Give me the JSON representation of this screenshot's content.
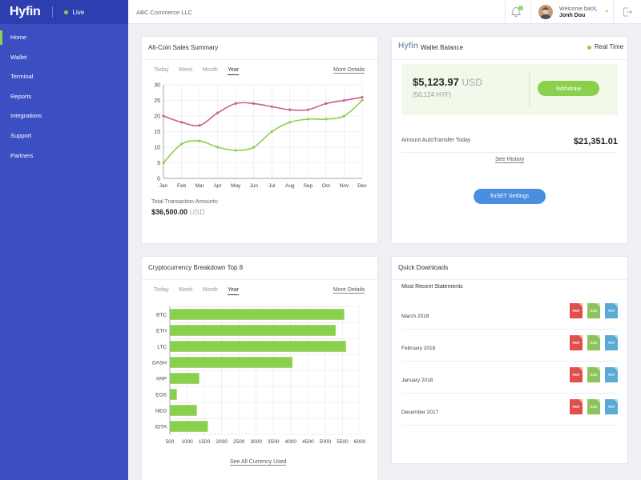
{
  "brand": {
    "logo": "Hyfin",
    "status": "Live"
  },
  "sidebar": {
    "items": [
      {
        "label": "Home"
      },
      {
        "label": "Wallet"
      },
      {
        "label": "Terminal"
      },
      {
        "label": "Reports"
      },
      {
        "label": "Integrations"
      },
      {
        "label": "Support"
      },
      {
        "label": "Partners"
      }
    ],
    "active": "Home"
  },
  "topbar": {
    "company": "ABC Commerce LLC",
    "notification_count": "4",
    "welcome": "Welcome back,",
    "username": "Jonh Dou"
  },
  "colors": {
    "sidebar": "#3c4fc2",
    "accent_green": "#8bd04c",
    "series_pink": "#c8608e",
    "button_blue": "#4a8ee0"
  },
  "sales": {
    "title": "Alt-Coin Sales Summary",
    "tabs": [
      "Today",
      "Week",
      "Month",
      "Year"
    ],
    "active_tab": "Year",
    "more": "More Details",
    "total_label": "Total Transaction Amounts:",
    "total_value": "$36,500.00",
    "total_currency": "USD"
  },
  "wallet": {
    "logo": "Hyfin",
    "title": "Wallet Balance",
    "realtime": "Real Time",
    "amount": "$5,123.97",
    "currency": "USD",
    "hyf": "(50,124 HYF)",
    "withdraw": "Withdraw",
    "autotransfer_label": "Amount AutoTransfer Today",
    "autotransfer_value": "$21,351.01",
    "history": "See History",
    "settings": "finSET Settings"
  },
  "crypto": {
    "title": "Cryptocurrency Breakdown Top 8",
    "tabs": [
      "Today",
      "Week",
      "Month",
      "Year"
    ],
    "active_tab": "Year",
    "more": "More Details",
    "see_all": "See All Currency Used"
  },
  "downloads": {
    "title": "Quick Downloads",
    "subtitle": "Most Recent Statements",
    "rows": [
      {
        "label": "March 2018"
      },
      {
        "label": "February 2018"
      },
      {
        "label": "January 2018"
      },
      {
        "label": "December 2017"
      }
    ],
    "types": [
      "PDF",
      "CSV",
      "TXT"
    ]
  },
  "chart_data": [
    {
      "type": "line",
      "x": [
        "Jan",
        "Feb",
        "Mar",
        "Apr",
        "May",
        "Jun",
        "Jul",
        "Aug",
        "Sep",
        "Oct",
        "Nov",
        "Dec"
      ],
      "ylim": [
        0,
        30
      ],
      "yticks": [
        0,
        5,
        10,
        15,
        20,
        25,
        30
      ],
      "series": [
        {
          "values": [
            20,
            18,
            17,
            21,
            24,
            24,
            23,
            22,
            22,
            24,
            25,
            26
          ],
          "color": "#c8608e"
        },
        {
          "values": [
            5,
            11,
            12,
            10,
            9,
            10,
            15,
            18,
            19,
            19,
            20,
            25
          ],
          "color": "#8bd04c"
        }
      ],
      "grid": true
    },
    {
      "type": "bar",
      "orientation": "horizontal",
      "categories": [
        "BTC",
        "ETH",
        "LTC",
        "DASH",
        "XRP",
        "EOS",
        "NEO",
        "IOTA"
      ],
      "values": [
        5550,
        5300,
        5600,
        4050,
        1350,
        700,
        1280,
        1600
      ],
      "xlim": [
        500,
        6000
      ],
      "xticks": [
        500,
        1000,
        1500,
        2000,
        2500,
        3000,
        3500,
        4000,
        4500,
        5000,
        5500,
        6000
      ],
      "color": "#8bd04c",
      "grid": true
    }
  ]
}
